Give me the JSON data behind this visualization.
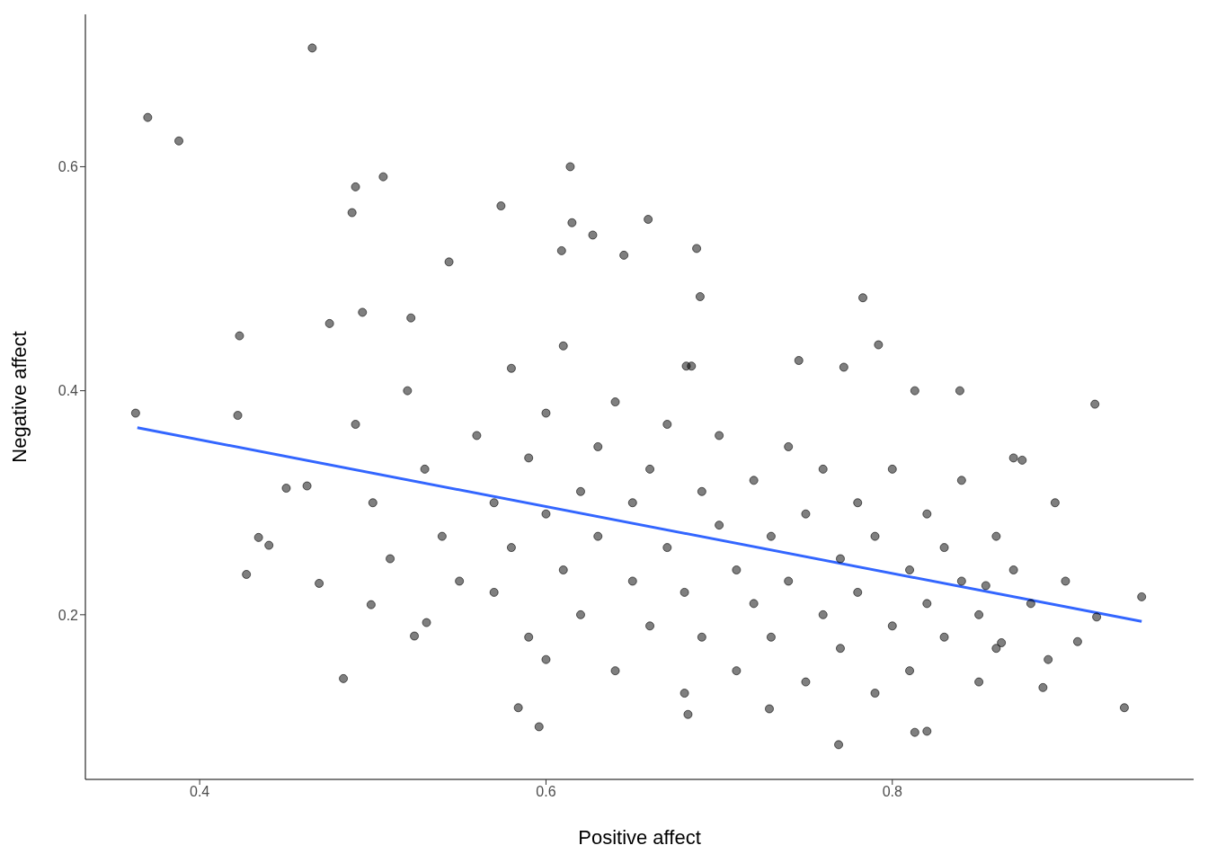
{
  "chart_data": {
    "type": "scatter",
    "xlabel": "Positive affect",
    "ylabel": "Negative affect",
    "xlim": [
      0.334,
      0.974
    ],
    "ylim": [
      0.053,
      0.736
    ],
    "xticks": [
      0.4,
      0.6,
      0.8
    ],
    "yticks": [
      0.2,
      0.4,
      0.6
    ],
    "grid": false,
    "series": [
      {
        "marker": "circle",
        "color": "#000000",
        "x": [
          0.363,
          0.37,
          0.388,
          0.465,
          0.423,
          0.422,
          0.427,
          0.434,
          0.44,
          0.45,
          0.462,
          0.483,
          0.469,
          0.475,
          0.49,
          0.488,
          0.506,
          0.494,
          0.522,
          0.544,
          0.499,
          0.524,
          0.531,
          0.574,
          0.614,
          0.615,
          0.659,
          0.627,
          0.609,
          0.645,
          0.687,
          0.689,
          0.681,
          0.596,
          0.584,
          0.682,
          0.769,
          0.813,
          0.82,
          0.934,
          0.944,
          0.918,
          0.917,
          0.907,
          0.894,
          0.783,
          0.792,
          0.839,
          0.875,
          0.887,
          0.729,
          0.746,
          0.684,
          0.772,
          0.813,
          0.854,
          0.863,
          0.52,
          0.53,
          0.54,
          0.55,
          0.56,
          0.57,
          0.57,
          0.58,
          0.58,
          0.59,
          0.59,
          0.6,
          0.6,
          0.6,
          0.61,
          0.61,
          0.62,
          0.62,
          0.63,
          0.63,
          0.64,
          0.64,
          0.65,
          0.65,
          0.66,
          0.66,
          0.67,
          0.67,
          0.68,
          0.68,
          0.69,
          0.69,
          0.7,
          0.7,
          0.71,
          0.71,
          0.72,
          0.72,
          0.73,
          0.73,
          0.74,
          0.74,
          0.75,
          0.75,
          0.76,
          0.76,
          0.77,
          0.77,
          0.78,
          0.78,
          0.79,
          0.79,
          0.8,
          0.8,
          0.81,
          0.81,
          0.82,
          0.82,
          0.83,
          0.83,
          0.84,
          0.84,
          0.85,
          0.85,
          0.86,
          0.86,
          0.87,
          0.87,
          0.88,
          0.89,
          0.9,
          0.5,
          0.51,
          0.49
        ],
        "values": [
          0.38,
          0.644,
          0.623,
          0.706,
          0.449,
          0.378,
          0.236,
          0.269,
          0.262,
          0.313,
          0.315,
          0.143,
          0.228,
          0.46,
          0.582,
          0.559,
          0.591,
          0.47,
          0.465,
          0.515,
          0.209,
          0.181,
          0.193,
          0.565,
          0.6,
          0.55,
          0.553,
          0.539,
          0.525,
          0.521,
          0.527,
          0.484,
          0.422,
          0.1,
          0.117,
          0.111,
          0.084,
          0.095,
          0.096,
          0.117,
          0.216,
          0.198,
          0.388,
          0.176,
          0.3,
          0.483,
          0.441,
          0.4,
          0.338,
          0.135,
          0.116,
          0.427,
          0.422,
          0.421,
          0.4,
          0.226,
          0.175,
          0.4,
          0.33,
          0.27,
          0.23,
          0.36,
          0.3,
          0.22,
          0.42,
          0.26,
          0.18,
          0.34,
          0.29,
          0.38,
          0.16,
          0.24,
          0.44,
          0.31,
          0.2,
          0.35,
          0.27,
          0.15,
          0.39,
          0.23,
          0.3,
          0.33,
          0.19,
          0.37,
          0.26,
          0.13,
          0.22,
          0.31,
          0.18,
          0.28,
          0.36,
          0.24,
          0.15,
          0.32,
          0.21,
          0.27,
          0.18,
          0.35,
          0.23,
          0.29,
          0.14,
          0.2,
          0.33,
          0.25,
          0.17,
          0.3,
          0.22,
          0.13,
          0.27,
          0.19,
          0.33,
          0.24,
          0.15,
          0.29,
          0.21,
          0.18,
          0.26,
          0.32,
          0.23,
          0.14,
          0.2,
          0.27,
          0.17,
          0.24,
          0.34,
          0.21,
          0.16,
          0.23,
          0.3,
          0.25,
          0.37
        ]
      },
      {
        "type": "line",
        "marker": "none",
        "color": "#3366ff",
        "x": [
          0.364,
          0.944
        ],
        "values": [
          0.367,
          0.194
        ]
      }
    ]
  }
}
